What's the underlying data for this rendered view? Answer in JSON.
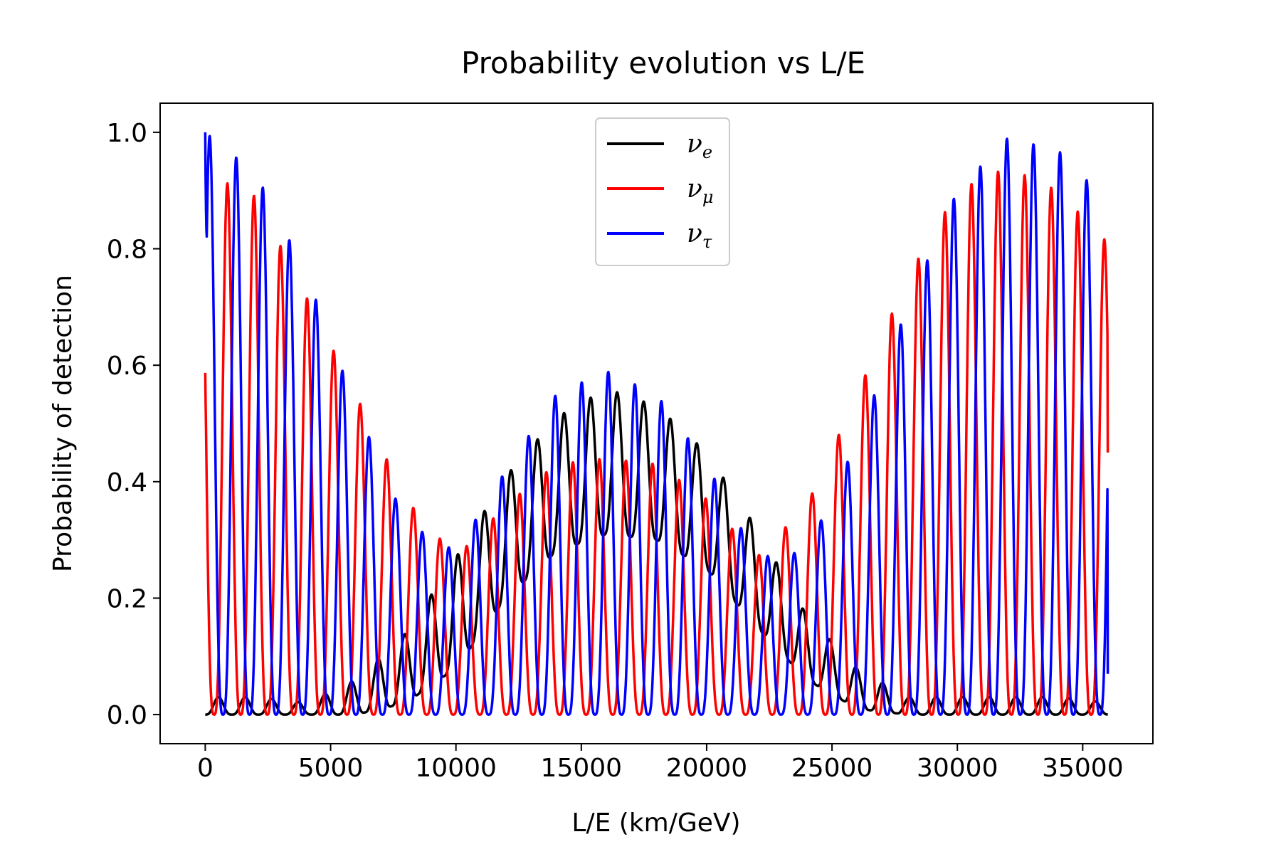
{
  "chart_data": {
    "type": "line",
    "title": "Probability evolution vs L/E",
    "xlabel": "L/E (km/GeV)",
    "ylabel": "Probability of detection",
    "xlim": [
      -1800,
      37800
    ],
    "ylim": [
      -0.05,
      1.05
    ],
    "xticks": [
      0,
      5000,
      10000,
      15000,
      20000,
      25000,
      30000,
      35000
    ],
    "xtick_labels": [
      "0",
      "5000",
      "10000",
      "15000",
      "20000",
      "25000",
      "30000",
      "35000"
    ],
    "yticks": [
      0.0,
      0.2,
      0.4,
      0.6,
      0.8,
      1.0
    ],
    "ytick_labels": [
      "0.0",
      "0.2",
      "0.4",
      "0.6",
      "0.8",
      "1.0"
    ],
    "grid": false,
    "legend_position": "top-center",
    "x_range": [
      0,
      36000
    ],
    "series": [
      {
        "name": "νe",
        "legend_base": "ν",
        "legend_sub": "e",
        "color": "#000000",
        "x": [
          0,
          2000,
          4000,
          6000,
          8000,
          10000,
          12000,
          14000,
          16000,
          18000,
          20000,
          22000,
          24000,
          26000,
          28000,
          30000,
          32000,
          34000,
          36000
        ],
        "envelope_max": [
          0.03,
          0.03,
          0.02,
          0.06,
          0.14,
          0.27,
          0.41,
          0.51,
          0.56,
          0.53,
          0.45,
          0.32,
          0.17,
          0.08,
          0.03,
          0.03,
          0.03,
          0.03,
          0.02
        ],
        "envelope_min": [
          0.0,
          0.0,
          0.0,
          0.0,
          0.02,
          0.08,
          0.2,
          0.28,
          0.31,
          0.3,
          0.25,
          0.15,
          0.06,
          0.01,
          0.0,
          0.0,
          0.0,
          0.0,
          0.0
        ]
      },
      {
        "name": "νμ",
        "legend_base": "ν",
        "legend_sub": "μ",
        "color": "#ff0000",
        "x": [
          0,
          2000,
          4000,
          6000,
          8000,
          10000,
          12000,
          14000,
          16000,
          18000,
          20000,
          22000,
          24000,
          26000,
          28000,
          30000,
          32000,
          34000,
          36000
        ],
        "envelope_max": [
          0.93,
          0.89,
          0.72,
          0.55,
          0.37,
          0.27,
          0.36,
          0.43,
          0.44,
          0.43,
          0.37,
          0.27,
          0.36,
          0.55,
          0.75,
          0.9,
          0.94,
          0.9,
          0.81
        ],
        "envelope_min": [
          0.0,
          0.0,
          0.0,
          0.0,
          0.0,
          0.0,
          0.0,
          0.0,
          0.0,
          0.0,
          0.0,
          0.0,
          0.0,
          0.0,
          0.0,
          0.0,
          0.0,
          0.0,
          0.0
        ],
        "end_value": 0.45
      },
      {
        "name": "ντ",
        "legend_base": "ν",
        "legend_sub": "τ",
        "color": "#0000ff",
        "x": [
          0,
          2000,
          4000,
          6000,
          8000,
          10000,
          12000,
          14000,
          16000,
          18000,
          20000,
          22000,
          24000,
          26000,
          28000,
          30000,
          32000,
          34000,
          36000
        ],
        "envelope_max": [
          1.0,
          0.93,
          0.76,
          0.53,
          0.33,
          0.28,
          0.42,
          0.55,
          0.59,
          0.55,
          0.43,
          0.27,
          0.28,
          0.47,
          0.7,
          0.9,
          0.99,
          0.97,
          0.88
        ],
        "envelope_min": [
          0.0,
          0.0,
          0.0,
          0.0,
          0.0,
          0.0,
          0.0,
          0.0,
          0.0,
          0.0,
          0.0,
          0.0,
          0.0,
          0.0,
          0.0,
          0.0,
          0.0,
          0.0,
          0.0
        ],
        "start_value": 1.0,
        "end_value": 0.07
      }
    ]
  }
}
